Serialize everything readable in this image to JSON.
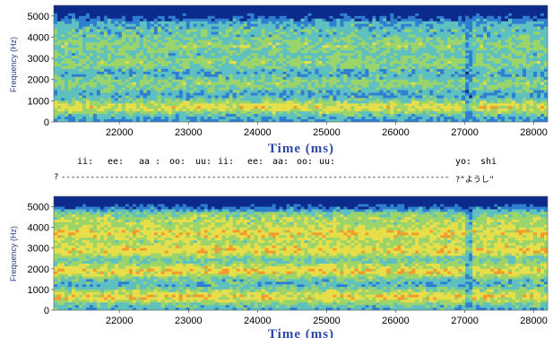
{
  "chart_data": [
    {
      "type": "heatmap",
      "title": "",
      "xlabel": "Time (ms)",
      "ylabel": "Frequency (Hz)",
      "xlim": [
        21050,
        28200
      ],
      "ylim": [
        0,
        5500
      ],
      "x_ticks": [
        "22000",
        "23000",
        "24000",
        "25000",
        "26000",
        "27000",
        "28000"
      ],
      "y_ticks": [
        "0",
        "1000",
        "2000",
        "3000",
        "4000",
        "5000"
      ],
      "colormap": [
        "#0b2a8c",
        "#2f7fd1",
        "#5fc0c0",
        "#9bd46a",
        "#e6df4a",
        "#f29a2e",
        "#f2493f",
        "#e8205e"
      ],
      "bands_hz": [
        {
          "center": 700,
          "intensity": "high"
        },
        {
          "center": 1800,
          "intensity": "medium"
        },
        {
          "center": 2800,
          "intensity": "medium"
        },
        {
          "center": 3600,
          "intensity": "medium"
        },
        {
          "center": 4300,
          "intensity": "low"
        }
      ]
    },
    {
      "type": "heatmap",
      "title": "",
      "xlabel": "Time (ms)",
      "ylabel": "Frequency (Hz)",
      "xlim": [
        21050,
        28200
      ],
      "ylim": [
        0,
        5500
      ],
      "x_ticks": [
        "22000",
        "23000",
        "24000",
        "25000",
        "26000",
        "27000",
        "28000"
      ],
      "y_ticks": [
        "0",
        "1000",
        "2000",
        "3000",
        "4000",
        "5000"
      ],
      "colormap": [
        "#0b2a8c",
        "#2f7fd1",
        "#5fc0c0",
        "#9bd46a",
        "#e6df4a",
        "#f29a2e",
        "#f2493f",
        "#e8205e"
      ],
      "bands_hz": [
        {
          "center": 650,
          "intensity": "high"
        },
        {
          "center": 1900,
          "intensity": "high"
        },
        {
          "center": 2900,
          "intensity": "high"
        },
        {
          "center": 3700,
          "intensity": "high"
        },
        {
          "center": 4400,
          "intensity": "medium"
        }
      ]
    }
  ],
  "annotation": {
    "phonemes": [
      "ii:",
      "ee:",
      "aa :",
      "oo:",
      "uu:",
      "ii:",
      "ee:",
      "aa:",
      "oo:",
      "uu:",
      "yo:",
      "shi"
    ],
    "marker_start": "?",
    "marker_end": "?\"ようし\""
  }
}
